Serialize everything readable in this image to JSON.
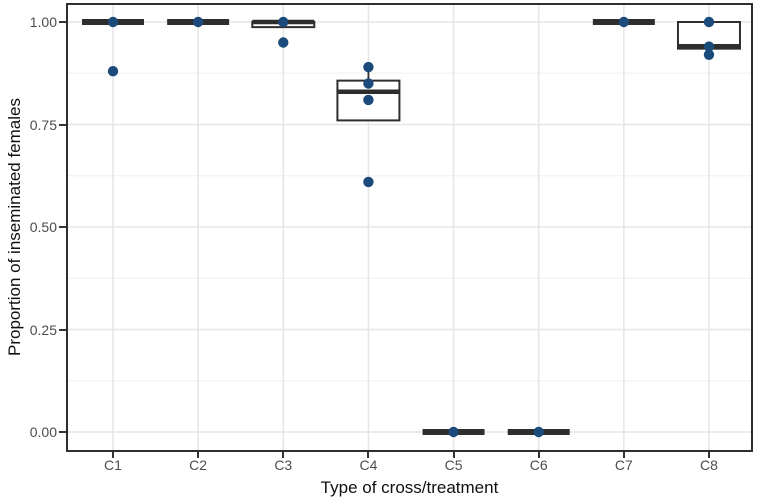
{
  "chart_data": {
    "type": "boxplot",
    "title": "",
    "xlabel": "Type of cross/treatment",
    "ylabel": "Proportion of inseminated females",
    "categories": [
      "C1",
      "C2",
      "C3",
      "C4",
      "C5",
      "C6",
      "C7",
      "C8"
    ],
    "ylim": [
      -0.05,
      1.05
    ],
    "yticks": [
      0.0,
      0.25,
      0.5,
      0.75,
      1.0
    ],
    "ytick_labels": [
      "0.00",
      "0.25",
      "0.50",
      "0.75",
      "1.00"
    ],
    "minor_yticks": [
      0.125,
      0.375,
      0.625,
      0.875
    ],
    "grid": "on",
    "legend": "none",
    "boxes": [
      {
        "category": "C1",
        "q1": 1.0,
        "median": 1.0,
        "q3": 1.0,
        "points": [
          1.0,
          0.88
        ]
      },
      {
        "category": "C2",
        "q1": 1.0,
        "median": 1.0,
        "q3": 1.0,
        "points": [
          1.0
        ]
      },
      {
        "category": "C3",
        "q1": 0.9875,
        "median": 1.0,
        "q3": 1.0,
        "points": [
          1.0,
          0.95
        ]
      },
      {
        "category": "C4",
        "q1": 0.76,
        "median": 0.83,
        "q3": 0.857,
        "whisker_high": 0.89,
        "points": [
          0.89,
          0.85,
          0.81,
          0.61
        ]
      },
      {
        "category": "C5",
        "q1": 0.0,
        "median": 0.0,
        "q3": 0.0,
        "points": [
          0.0
        ]
      },
      {
        "category": "C6",
        "q1": 0.0,
        "median": 0.0,
        "q3": 0.0,
        "points": [
          0.0
        ]
      },
      {
        "category": "C7",
        "q1": 1.0,
        "median": 1.0,
        "q3": 1.0,
        "points": [
          1.0
        ]
      },
      {
        "category": "C8",
        "q1": 0.935,
        "median": 0.941,
        "q3": 1.0,
        "points": [
          1.0,
          0.94,
          0.92
        ]
      }
    ],
    "colors": {
      "point_fill": "#1c4a7b",
      "box_stroke": "#2e2e2e",
      "box_fill": "#ffffff",
      "grid_major": "#e6e6e6",
      "grid_minor": "#f2f2f2",
      "panel_border": "#2e2e2e",
      "panel_bg": "#ffffff",
      "tick_label": "#4d4d4d",
      "axis_title": "#111111"
    }
  }
}
